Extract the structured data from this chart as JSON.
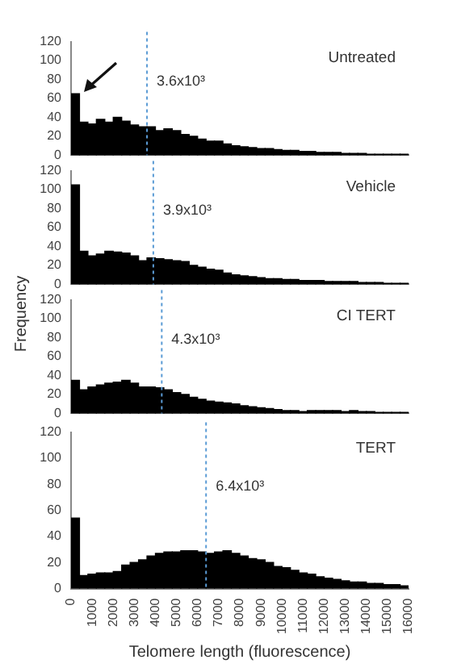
{
  "chart_data": [
    {
      "type": "histogram",
      "title": "Untreated",
      "bins": [
        0,
        400,
        800,
        1200,
        1600,
        2000,
        2400,
        2800,
        3200,
        3600,
        4000,
        4400,
        4800,
        5200,
        5600,
        6000,
        6400,
        6800,
        7200,
        7600,
        8000,
        8400,
        8800,
        9200,
        9600,
        10000,
        10400,
        10800,
        11200,
        11600,
        12000,
        12400,
        12800,
        13200,
        13600,
        14000,
        14400,
        14800,
        15200,
        15600,
        16000
      ],
      "values": [
        65,
        35,
        33,
        38,
        35,
        40,
        36,
        32,
        30,
        30,
        26,
        28,
        26,
        22,
        20,
        17,
        15,
        15,
        12,
        10,
        9,
        8,
        7,
        7,
        6,
        5,
        5,
        4,
        4,
        3,
        3,
        3,
        2,
        2,
        2,
        1,
        1,
        1,
        1,
        1
      ],
      "color": "#000000",
      "xlim": [
        0,
        16000
      ],
      "ylim": [
        0,
        120
      ],
      "yticks": [
        0,
        20,
        40,
        60,
        80,
        100,
        120
      ],
      "tick_labels": "y",
      "grid": false,
      "legend": false,
      "ref_lines": [
        {
          "axis": "x",
          "value": 3600,
          "label": "3.6x10³",
          "color": "#5b9bd5",
          "line_style": "dotted"
        }
      ]
    },
    {
      "type": "histogram",
      "title": "Vehicle",
      "ylabel": "Frequency",
      "bins": [
        0,
        400,
        800,
        1200,
        1600,
        2000,
        2400,
        2800,
        3200,
        3600,
        4000,
        4400,
        4800,
        5200,
        5600,
        6000,
        6400,
        6800,
        7200,
        7600,
        8000,
        8400,
        8800,
        9200,
        9600,
        10000,
        10400,
        10800,
        11200,
        11600,
        12000,
        12400,
        12800,
        13200,
        13600,
        14000,
        14400,
        14800,
        15200,
        15600,
        16000
      ],
      "values": [
        105,
        35,
        30,
        32,
        35,
        34,
        33,
        30,
        25,
        28,
        27,
        26,
        25,
        24,
        20,
        18,
        16,
        15,
        12,
        10,
        9,
        8,
        7,
        6,
        6,
        5,
        5,
        4,
        4,
        4,
        3,
        3,
        3,
        3,
        2,
        2,
        2,
        1,
        1,
        1
      ],
      "color": "#000000",
      "xlim": [
        0,
        16000
      ],
      "ylim": [
        0,
        120
      ],
      "yticks": [
        0,
        20,
        40,
        60,
        80,
        100,
        120
      ],
      "tick_labels": "y",
      "grid": false,
      "legend": false,
      "ref_lines": [
        {
          "axis": "x",
          "value": 3900,
          "label": "3.9x10³",
          "color": "#5b9bd5",
          "line_style": "dotted"
        }
      ]
    },
    {
      "type": "histogram",
      "title": "CI TERT",
      "bins": [
        0,
        400,
        800,
        1200,
        1600,
        2000,
        2400,
        2800,
        3200,
        3600,
        4000,
        4400,
        4800,
        5200,
        5600,
        6000,
        6400,
        6800,
        7200,
        7600,
        8000,
        8400,
        8800,
        9200,
        9600,
        10000,
        10400,
        10800,
        11200,
        11600,
        12000,
        12400,
        12800,
        13200,
        13600,
        14000,
        14400,
        14800,
        15200,
        15600,
        16000
      ],
      "values": [
        35,
        25,
        28,
        30,
        32,
        33,
        35,
        32,
        28,
        28,
        27,
        25,
        22,
        20,
        17,
        15,
        13,
        12,
        11,
        10,
        8,
        7,
        6,
        5,
        4,
        3,
        3,
        2,
        3,
        3,
        3,
        3,
        2,
        3,
        2,
        2,
        1,
        1,
        1,
        1
      ],
      "color": "#000000",
      "xlim": [
        0,
        16000
      ],
      "ylim": [
        0,
        120
      ],
      "yticks": [
        0,
        20,
        40,
        60,
        80,
        100,
        120
      ],
      "tick_labels": "y",
      "grid": false,
      "legend": false,
      "ref_lines": [
        {
          "axis": "x",
          "value": 4300,
          "label": "4.3x10³",
          "color": "#5b9bd5",
          "line_style": "dotted"
        }
      ]
    },
    {
      "type": "histogram",
      "title": "TERT",
      "xlabel": "Telomere length (fluorescence)",
      "bins": [
        0,
        400,
        800,
        1200,
        1600,
        2000,
        2400,
        2800,
        3200,
        3600,
        4000,
        4400,
        4800,
        5200,
        5600,
        6000,
        6400,
        6800,
        7200,
        7600,
        8000,
        8400,
        8800,
        9200,
        9600,
        10000,
        10400,
        10800,
        11200,
        11600,
        12000,
        12400,
        12800,
        13200,
        13600,
        14000,
        14400,
        14800,
        15200,
        15600,
        16000
      ],
      "values": [
        54,
        10,
        11,
        12,
        12,
        13,
        18,
        20,
        22,
        25,
        27,
        28,
        28,
        29,
        29,
        28,
        27,
        28,
        29,
        27,
        25,
        23,
        22,
        20,
        17,
        16,
        14,
        12,
        11,
        9,
        8,
        7,
        6,
        5,
        5,
        4,
        4,
        3,
        3,
        2
      ],
      "color": "#000000",
      "xlim": [
        0,
        16000
      ],
      "ylim": [
        0,
        120
      ],
      "yticks": [
        0,
        20,
        40,
        60,
        80,
        100,
        120
      ],
      "xticks": [
        0,
        1000,
        2000,
        3000,
        4000,
        5000,
        6000,
        7000,
        8000,
        9000,
        10000,
        11000,
        12000,
        13000,
        14000,
        15000,
        16000
      ],
      "grid": false,
      "legend": false,
      "ref_lines": [
        {
          "axis": "x",
          "value": 6400,
          "label": "6.4x10³",
          "color": "#5b9bd5",
          "line_style": "dotted"
        }
      ]
    }
  ]
}
